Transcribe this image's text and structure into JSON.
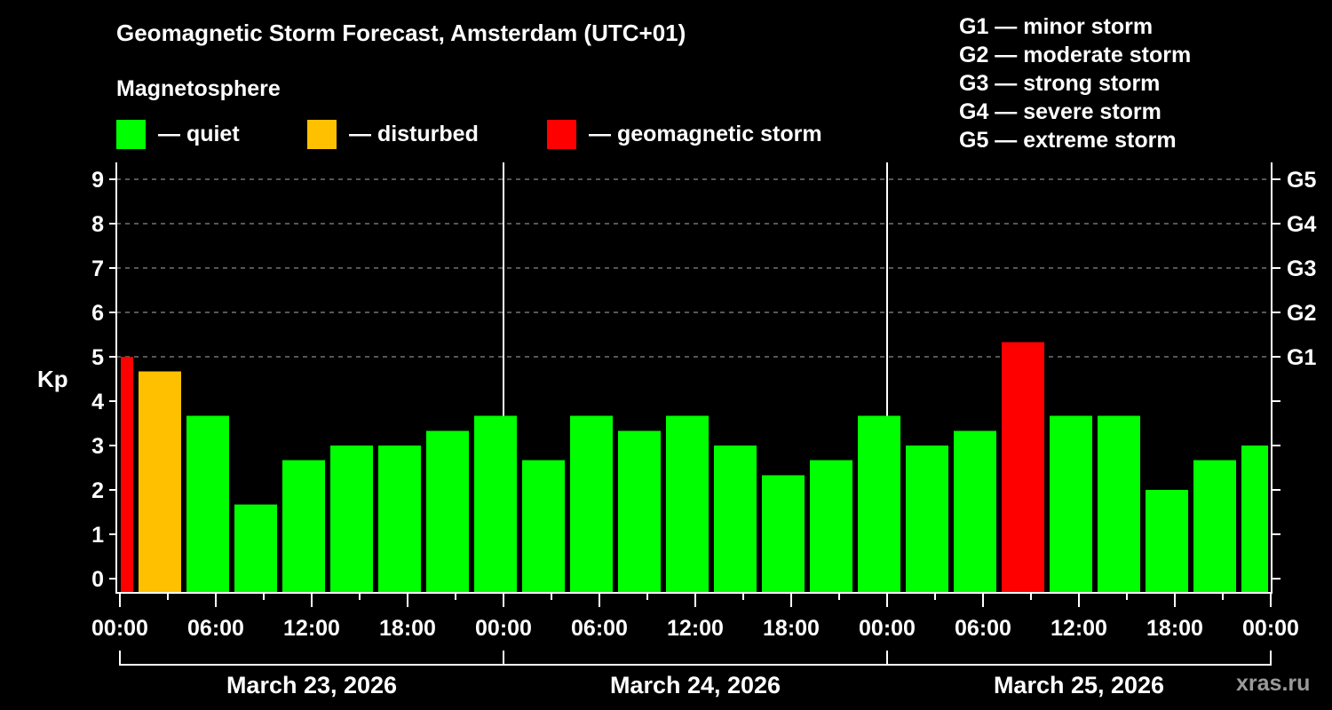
{
  "title": "Geomagnetic Storm Forecast, Amsterdam (UTC+01)",
  "legend": {
    "heading": "Magnetosphere",
    "items": [
      {
        "label": "— quiet",
        "color": "#00ff00"
      },
      {
        "label": "— disturbed",
        "color": "#ffc000"
      },
      {
        "label": "— geomagnetic storm",
        "color": "#ff0000"
      }
    ]
  },
  "g_scale": [
    {
      "label": "G1 — minor storm"
    },
    {
      "label": "G2 — moderate storm"
    },
    {
      "label": "G3 — strong storm"
    },
    {
      "label": "G4 — severe storm"
    },
    {
      "label": "G5 — extreme storm"
    }
  ],
  "watermark": "xras.ru",
  "chart_data": {
    "type": "bar",
    "title": "Geomagnetic Storm Forecast, Amsterdam (UTC+01)",
    "xlabel": "",
    "ylabel": "Kp",
    "ylim": [
      0,
      9
    ],
    "y_ticks": [
      0,
      1,
      2,
      3,
      4,
      5,
      6,
      7,
      8,
      9
    ],
    "right_axis_ticks": [
      {
        "kp": 5,
        "label": "G1"
      },
      {
        "kp": 6,
        "label": "G2"
      },
      {
        "kp": 7,
        "label": "G3"
      },
      {
        "kp": 8,
        "label": "G4"
      },
      {
        "kp": 9,
        "label": "G5"
      }
    ],
    "x_tick_labels": [
      "00:00",
      "06:00",
      "12:00",
      "18:00",
      "00:00",
      "06:00",
      "12:00",
      "18:00",
      "00:00",
      "06:00",
      "12:00",
      "18:00",
      "00:00"
    ],
    "date_labels": [
      "March 23, 2026",
      "March 24, 2026",
      "March 25, 2026"
    ],
    "grid": "dashed horizontal at Kp 5–9; solid vertical at day boundaries",
    "legend_position": "top",
    "categories": [
      "Mar 23 00:00-01:00",
      "Mar 23 01:00-04:00",
      "Mar 23 04:00-07:00",
      "Mar 23 07:00-10:00",
      "Mar 23 10:00-13:00",
      "Mar 23 13:00-16:00",
      "Mar 23 16:00-19:00",
      "Mar 23 19:00-22:00",
      "Mar 23 22:00-01:00",
      "Mar 24 01:00-04:00",
      "Mar 24 04:00-07:00",
      "Mar 24 07:00-10:00",
      "Mar 24 10:00-13:00",
      "Mar 24 13:00-16:00",
      "Mar 24 16:00-19:00",
      "Mar 24 19:00-22:00",
      "Mar 24 22:00-01:00",
      "Mar 25 01:00-04:00",
      "Mar 25 04:00-07:00",
      "Mar 25 07:00-10:00",
      "Mar 25 10:00-13:00",
      "Mar 25 13:00-16:00",
      "Mar 25 16:00-19:00",
      "Mar 25 19:00-22:00",
      "Mar 25 22:00-00:00"
    ],
    "start_hours": [
      0,
      1,
      4,
      7,
      10,
      13,
      16,
      19,
      22,
      25,
      28,
      31,
      34,
      37,
      40,
      43,
      46,
      49,
      52,
      55,
      58,
      61,
      64,
      67,
      70
    ],
    "end_hours": [
      1,
      4,
      7,
      10,
      13,
      16,
      19,
      22,
      25,
      28,
      31,
      34,
      37,
      40,
      43,
      46,
      49,
      52,
      55,
      58,
      61,
      64,
      67,
      70,
      72
    ],
    "values": [
      5.0,
      4.67,
      3.67,
      1.67,
      2.67,
      3.0,
      3.0,
      3.33,
      3.67,
      2.67,
      3.67,
      3.33,
      3.67,
      3.0,
      2.33,
      2.67,
      3.67,
      3.0,
      3.33,
      5.33,
      3.67,
      3.67,
      2.0,
      2.67,
      3.0
    ],
    "status": [
      "storm",
      "disturbed",
      "quiet",
      "quiet",
      "quiet",
      "quiet",
      "quiet",
      "quiet",
      "quiet",
      "quiet",
      "quiet",
      "quiet",
      "quiet",
      "quiet",
      "quiet",
      "quiet",
      "quiet",
      "quiet",
      "quiet",
      "storm",
      "quiet",
      "quiet",
      "quiet",
      "quiet",
      "quiet"
    ],
    "colors": {
      "quiet": "#00ff00",
      "disturbed": "#ffc000",
      "storm": "#ff0000"
    }
  }
}
